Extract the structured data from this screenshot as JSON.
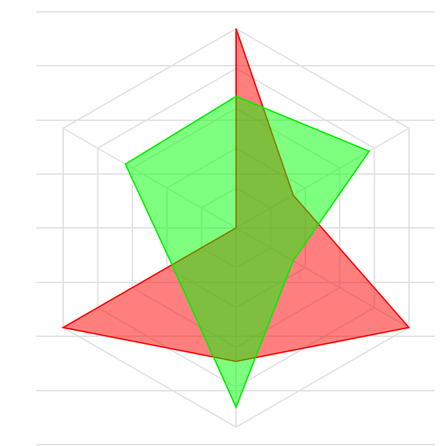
{
  "chart_data": {
    "type": "radar",
    "axes_count": 6,
    "r_max": 5,
    "ring_levels": [
      1,
      2,
      3,
      4,
      5
    ],
    "grid": true,
    "series": [
      {
        "values": [
          5,
          1.65,
          5,
          3.35,
          5,
          0
        ],
        "color": "#ff0000",
        "fill": "rgba(255,0,0,0.5)"
      },
      {
        "values": [
          3.3,
          3.85,
          1.65,
          4.5,
          1.85,
          3.2
        ],
        "color": "#00ee00",
        "fill": "rgba(0,255,0,0.5)"
      }
    ]
  }
}
